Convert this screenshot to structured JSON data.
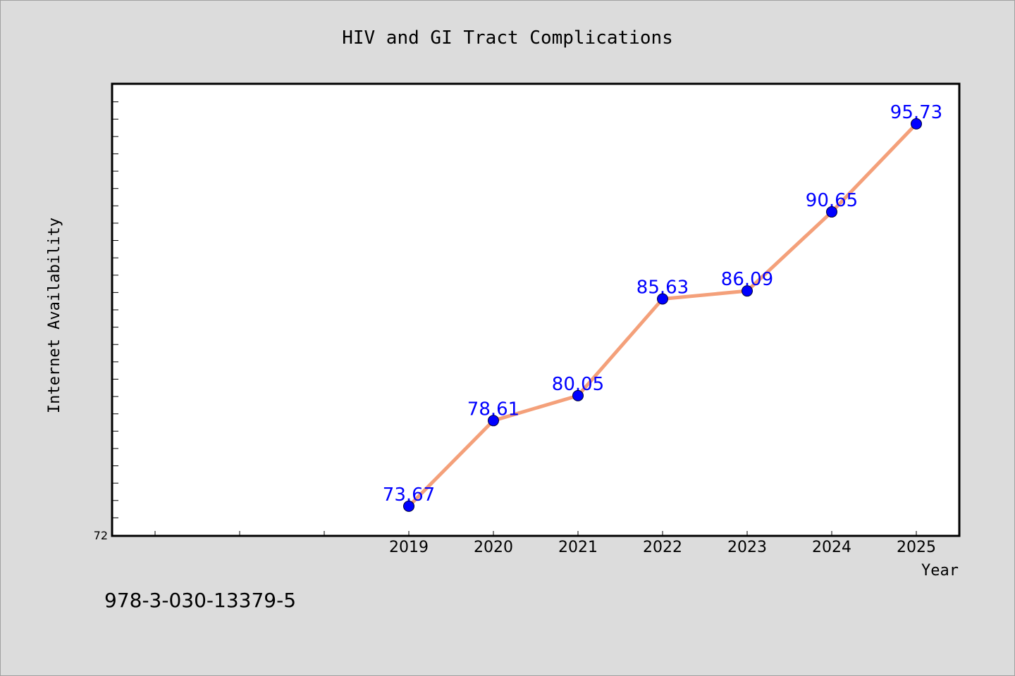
{
  "footnote": "978-3-030-13379-5",
  "colors": {
    "background": "#dcdcdc",
    "plot_background": "#ffffff",
    "line": "#f4a07a",
    "marker": "#0000ff",
    "data_label": "#0000ff"
  },
  "chart_data": {
    "type": "line",
    "title": "HIV and GI Tract Complications",
    "xlabel": "Year",
    "ylabel": "Internet Availability",
    "x": [
      2019,
      2020,
      2021,
      2022,
      2023,
      2024,
      2025
    ],
    "xtick_labels": [
      "2019",
      "2020",
      "2021",
      "2022",
      "2023",
      "2024",
      "2025"
    ],
    "xlim": [
      2015.5,
      2025.5
    ],
    "ylim": [
      72,
      98
    ],
    "ytick_labels": [
      "72"
    ],
    "grid": false,
    "series": [
      {
        "values": [
          73.67,
          78.61,
          80.05,
          85.63,
          86.09,
          90.65,
          95.73
        ],
        "labels": [
          "73.67",
          "78.61",
          "80.05",
          "85.63",
          "86.09",
          "90.65",
          "95.73"
        ]
      }
    ]
  }
}
